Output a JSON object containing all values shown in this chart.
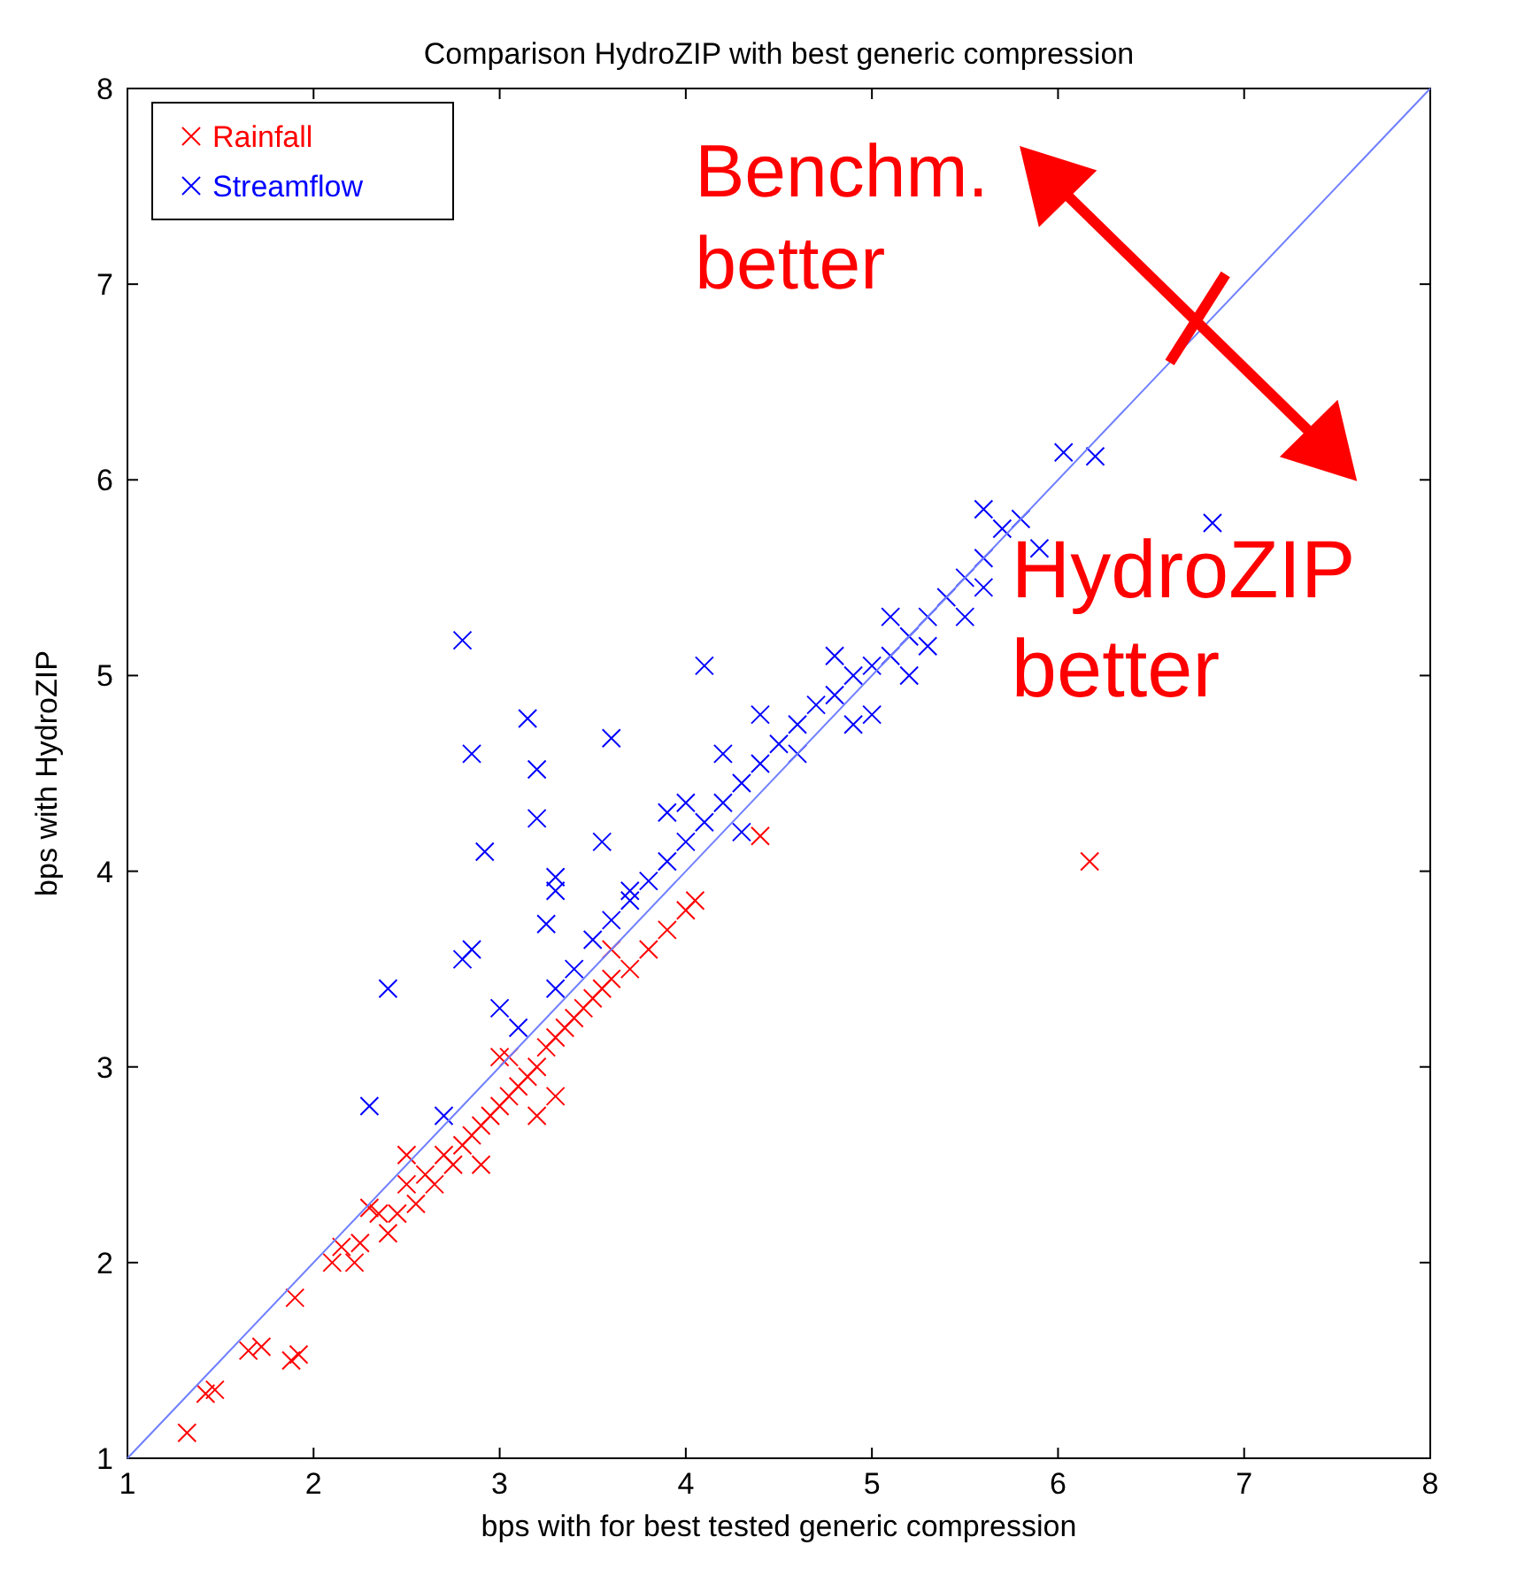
{
  "chart_data": {
    "type": "scatter",
    "title": "Comparison HydroZIP with best generic compression",
    "xlabel": "bps with for best tested generic compression",
    "ylabel": "bps with HydroZIP",
    "xlim": [
      1,
      8
    ],
    "ylim": [
      1,
      8
    ],
    "xticks": [
      1,
      2,
      3,
      4,
      5,
      6,
      7,
      8
    ],
    "yticks": [
      1,
      2,
      3,
      4,
      5,
      6,
      7,
      8
    ],
    "grid": false,
    "legend": "top left",
    "marker": "cross",
    "annotations": [
      "Benchm. better",
      "HydroZIP better"
    ],
    "series": [
      {
        "name": "Rainfall",
        "color": "#ff0000",
        "x": [
          1.32,
          1.42,
          1.47,
          1.65,
          1.72,
          1.88,
          1.92,
          1.9,
          2.1,
          2.15,
          2.22,
          2.25,
          2.3,
          2.4,
          2.45,
          2.5,
          2.55,
          2.6,
          2.65,
          2.7,
          2.75,
          2.8,
          2.85,
          2.9,
          2.95,
          3.0,
          3.0,
          3.05,
          3.1,
          3.15,
          3.2,
          3.25,
          3.3,
          3.35,
          3.4,
          3.45,
          3.5,
          3.55,
          3.6,
          3.7,
          3.8,
          3.9,
          4.0,
          4.05,
          3.2,
          3.3,
          2.9,
          3.05,
          4.4,
          6.17,
          2.5,
          2.35,
          3.6
        ],
        "values": [
          1.13,
          1.33,
          1.35,
          1.55,
          1.57,
          1.5,
          1.53,
          1.82,
          2.0,
          2.08,
          2.0,
          2.1,
          2.28,
          2.15,
          2.25,
          2.4,
          2.3,
          2.45,
          2.4,
          2.55,
          2.5,
          2.6,
          2.65,
          2.7,
          2.75,
          2.8,
          3.05,
          2.85,
          2.9,
          2.95,
          3.0,
          3.1,
          3.15,
          3.2,
          3.25,
          3.3,
          3.35,
          3.4,
          3.45,
          3.5,
          3.6,
          3.7,
          3.8,
          3.85,
          2.75,
          2.85,
          2.5,
          3.05,
          4.18,
          4.05,
          2.55,
          2.25,
          3.6
        ]
      },
      {
        "name": "Streamflow",
        "color": "#0000ff",
        "x": [
          2.3,
          2.4,
          2.8,
          2.85,
          2.92,
          2.8,
          2.85,
          3.15,
          3.2,
          3.2,
          3.3,
          3.3,
          3.25,
          3.6,
          3.55,
          3.7,
          4.1,
          3.0,
          3.1,
          2.7,
          3.3,
          3.4,
          3.5,
          3.6,
          3.7,
          3.8,
          3.9,
          4.0,
          4.1,
          4.2,
          4.3,
          4.4,
          4.5,
          4.6,
          4.7,
          4.8,
          4.9,
          5.0,
          5.1,
          5.2,
          5.3,
          5.4,
          5.5,
          5.6,
          5.7,
          5.8,
          5.6,
          5.9,
          6.03,
          6.2,
          6.83,
          4.0,
          4.2,
          4.4,
          4.8,
          4.9,
          5.0,
          5.1,
          5.3,
          5.5,
          5.6,
          3.9,
          4.3,
          4.6,
          5.2
        ],
        "values": [
          2.8,
          3.4,
          5.18,
          4.6,
          4.1,
          3.55,
          3.6,
          4.78,
          4.52,
          4.27,
          3.97,
          3.9,
          3.73,
          4.68,
          4.15,
          3.9,
          5.05,
          3.3,
          3.2,
          2.75,
          3.4,
          3.5,
          3.65,
          3.75,
          3.85,
          3.95,
          4.05,
          4.15,
          4.25,
          4.35,
          4.45,
          4.55,
          4.65,
          4.75,
          4.85,
          4.9,
          5.0,
          5.05,
          5.1,
          5.2,
          5.3,
          5.4,
          5.5,
          5.6,
          5.75,
          5.8,
          5.85,
          5.65,
          6.14,
          6.12,
          5.78,
          4.35,
          4.6,
          4.8,
          5.1,
          4.75,
          4.8,
          5.3,
          5.15,
          5.3,
          5.45,
          4.3,
          4.2,
          4.6,
          5.0
        ]
      },
      {
        "type": "line",
        "color": "#6f7fff",
        "marker": "none",
        "x": [
          1,
          8
        ],
        "values": [
          1,
          8
        ]
      }
    ]
  }
}
